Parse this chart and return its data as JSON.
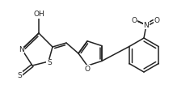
{
  "bg_color": "#ffffff",
  "line_color": "#222222",
  "line_width": 1.1,
  "font_size": 6.5,
  "figsize": [
    2.4,
    1.31
  ],
  "dpi": 100,
  "xlim": [
    0,
    240
  ],
  "ylim": [
    0,
    131
  ]
}
